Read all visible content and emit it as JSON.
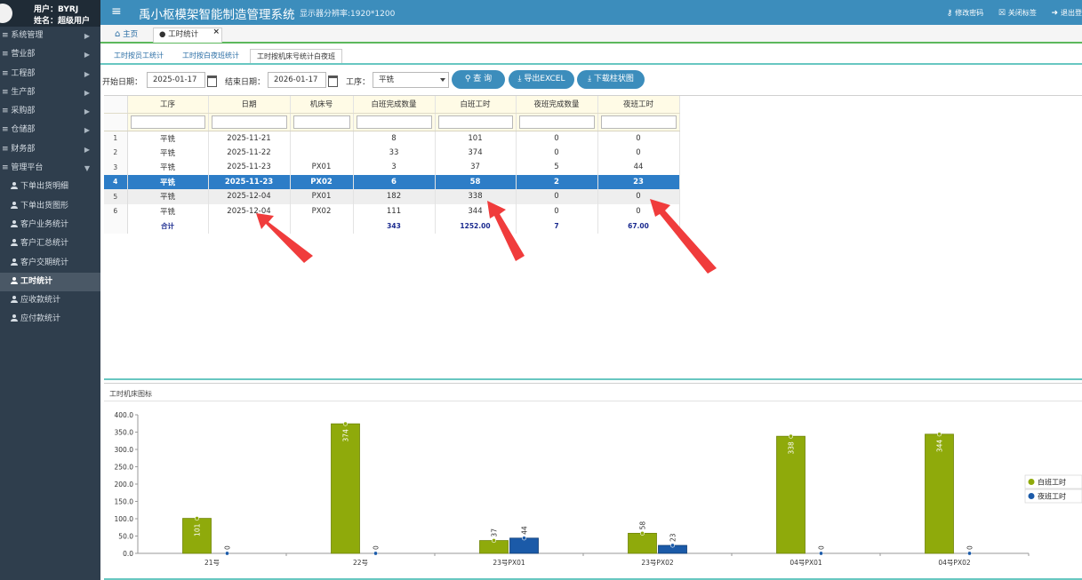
{
  "sidebar": {
    "user_line": "用户：BYRJ",
    "name_line": "姓名：超级用户",
    "menu": [
      {
        "label": "≡ 系统管理",
        "caret": "▶"
      },
      {
        "label": "≡ 营业部",
        "caret": "▶"
      },
      {
        "label": "≡ 工程部",
        "caret": "▶"
      },
      {
        "label": "≡ 生产部",
        "caret": "▶"
      },
      {
        "label": "≡ 采购部",
        "caret": "▶"
      },
      {
        "label": "≡ 仓储部",
        "caret": "▶"
      },
      {
        "label": "≡ 财务部",
        "caret": "▶"
      },
      {
        "label": "≡ 管理平台",
        "caret": "▼"
      }
    ],
    "submenu": [
      "下单出货明细",
      "下单出货图形",
      "客户业务统计",
      "客户汇总统计",
      "客户交期统计",
      "工时统计",
      "应收款统计",
      "应付款统计"
    ]
  },
  "header": {
    "title": "禹小枢模架智能制造管理系统",
    "resolution": "显示器分辨率:1920*1200",
    "actions": [
      "修改密码",
      "关闭标签",
      "退出登"
    ]
  },
  "page_tabs": {
    "home": "主页",
    "current": "工时统计",
    "close": "×"
  },
  "sub_tabs": [
    "工时按员工统计",
    "工时按白夜班统计",
    "工时按机床号统计白夜班"
  ],
  "filter": {
    "start_label": "开始日期：",
    "start_value": "2025-01-17",
    "end_label": "结束日期：",
    "end_value": "2026-01-17",
    "process_label": "工序：",
    "process_value": "平铣",
    "query_btn": "查 询",
    "export_btn": "导出EXCEL",
    "download_btn": "下载柱状图"
  },
  "table": {
    "columns": [
      "工序",
      "日期",
      "机床号",
      "白班完成数量",
      "白班工时",
      "夜班完成数量",
      "夜班工时"
    ],
    "rows": [
      [
        "平铣",
        "2025-11-21",
        "",
        "8",
        "101",
        "0",
        "0"
      ],
      [
        "平铣",
        "2025-11-22",
        "",
        "33",
        "374",
        "0",
        "0"
      ],
      [
        "平铣",
        "2025-11-23",
        "PX01",
        "3",
        "37",
        "5",
        "44"
      ],
      [
        "平铣",
        "2025-11-23",
        "PX02",
        "6",
        "58",
        "2",
        "23"
      ],
      [
        "平铣",
        "2025-12-04",
        "PX01",
        "182",
        "338",
        "0",
        "0"
      ],
      [
        "平铣",
        "2025-12-04",
        "PX02",
        "111",
        "344",
        "0",
        "0"
      ]
    ],
    "row_numbers": [
      "1",
      "2",
      "3",
      "4",
      "5",
      "6"
    ],
    "totals": [
      "合计",
      "",
      "",
      "343",
      "1252.00",
      "7",
      "67.00"
    ]
  },
  "chart_panel": {
    "title": "工时机床图标"
  },
  "chart_data": {
    "type": "bar",
    "categories": [
      "21号",
      "22号",
      "23号PX01",
      "23号PX02",
      "04号PX01",
      "04号PX02"
    ],
    "series": [
      {
        "name": "白班工时",
        "values": [
          101,
          374,
          37,
          58,
          338,
          344
        ],
        "color": "#8faa0b"
      },
      {
        "name": "夜班工时",
        "values": [
          0,
          0,
          44,
          23,
          0,
          0
        ],
        "color": "#1b5aa8"
      }
    ],
    "ylim": [
      0,
      400
    ],
    "yticks": [
      "0.0",
      "50.0",
      "100.0",
      "150.0",
      "200.0",
      "250.0",
      "300.0",
      "350.0",
      "400.0"
    ],
    "legend_position": "right",
    "data_labels": true
  },
  "colors": {
    "header": "#3c8dbc",
    "sidebar": "#2f3e4d",
    "selected_row": "#2d7dc7",
    "arrow": "#f03c3c"
  }
}
